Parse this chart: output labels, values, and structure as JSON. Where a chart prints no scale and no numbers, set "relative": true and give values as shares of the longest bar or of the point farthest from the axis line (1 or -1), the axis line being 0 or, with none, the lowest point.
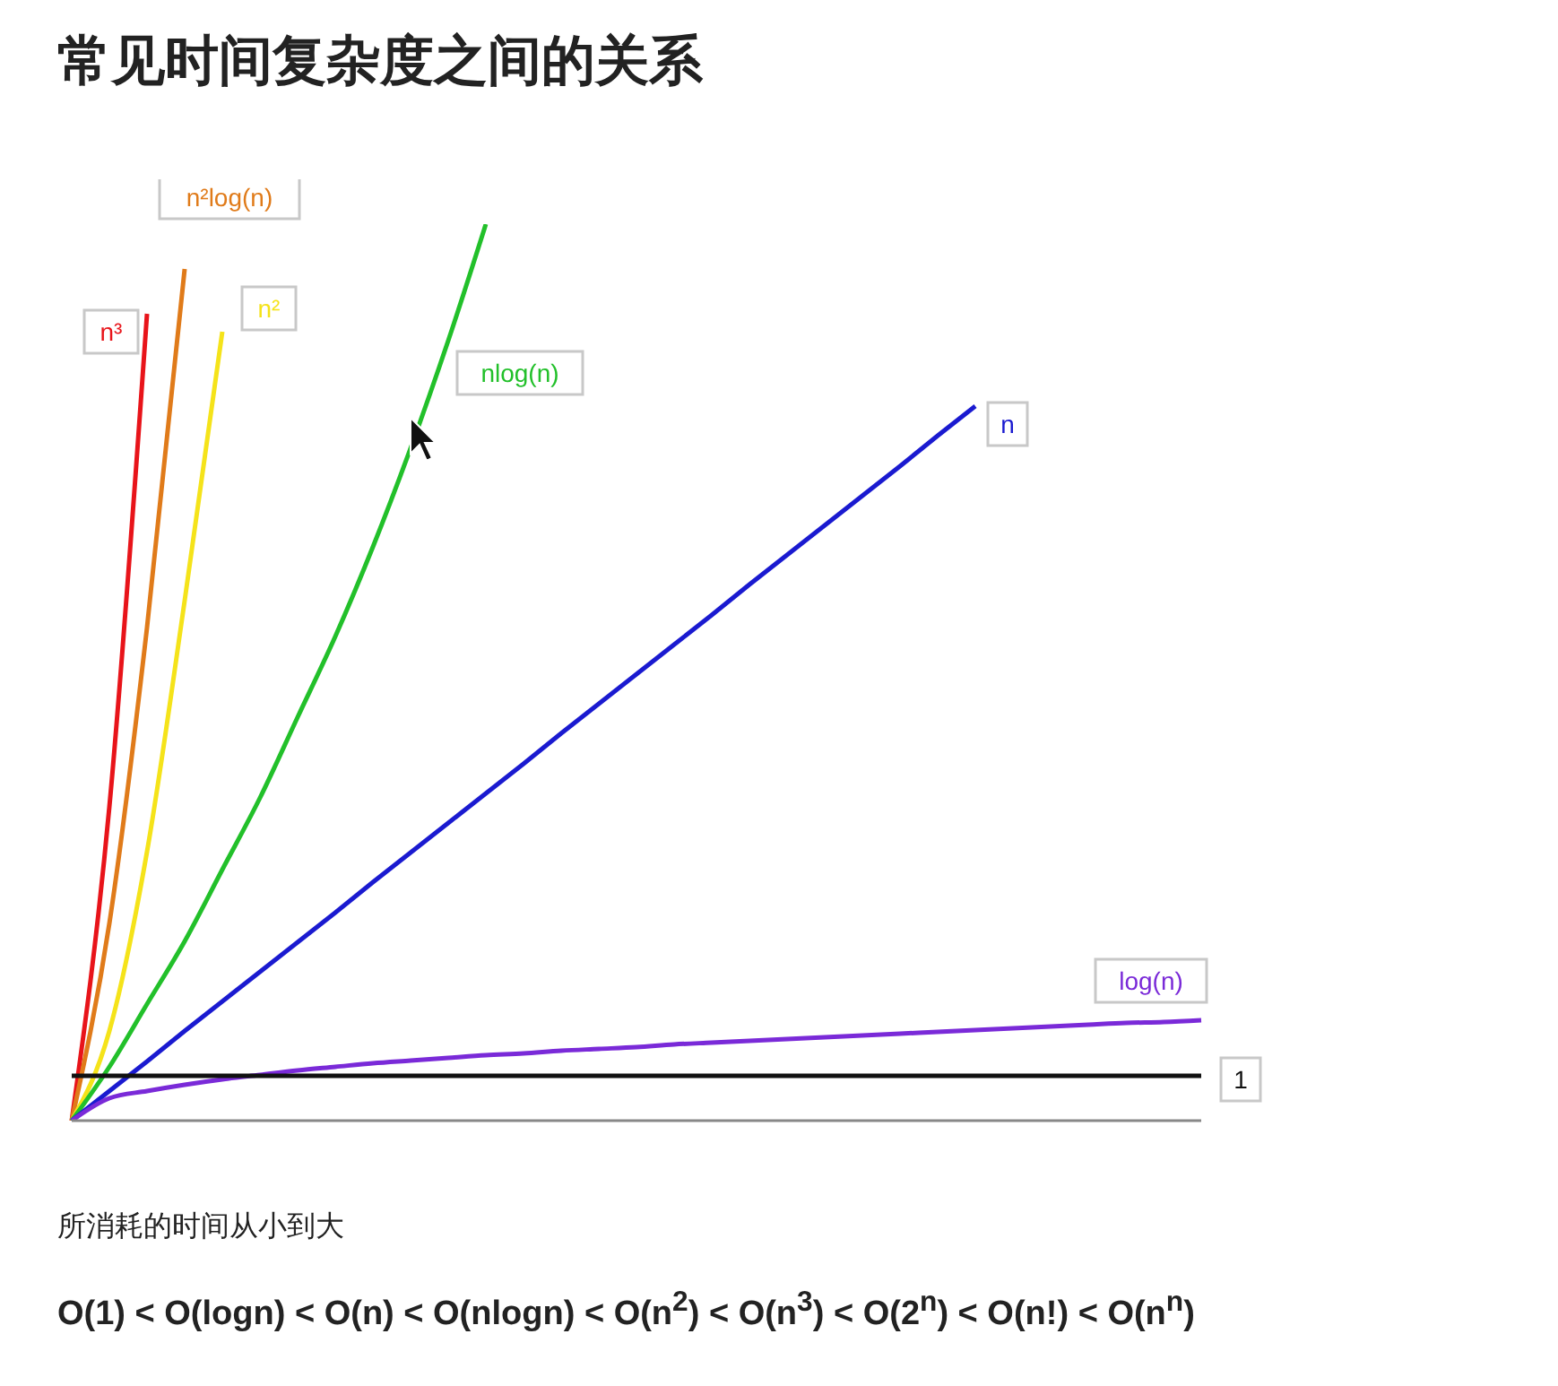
{
  "chart_data": {
    "type": "line",
    "title": "常见时间复杂度之间的关系",
    "relative": true,
    "legend": false,
    "marker": "none",
    "categories": [
      null,
      null,
      null,
      null,
      null,
      null,
      null,
      null,
      null,
      null,
      null,
      null,
      null,
      null,
      null,
      null,
      null,
      null,
      null,
      null,
      null,
      null,
      null,
      null,
      null,
      null,
      null,
      null,
      null,
      null,
      null
    ],
    "series": [
      {
        "name": "n³",
        "color": "#e8141a",
        "values": [
          0,
          0.35,
          0.9,
          null,
          null,
          null,
          null,
          null,
          null,
          null,
          null,
          null,
          null,
          null,
          null,
          null,
          null,
          null,
          null,
          null,
          null,
          null,
          null,
          null,
          null,
          null,
          null,
          null,
          null,
          null,
          null
        ]
      },
      {
        "name": "n²log(n)",
        "color": "#e07b1a",
        "values": [
          0,
          0.22,
          0.55,
          0.95,
          null,
          null,
          null,
          null,
          null,
          null,
          null,
          null,
          null,
          null,
          null,
          null,
          null,
          null,
          null,
          null,
          null,
          null,
          null,
          null,
          null,
          null,
          null,
          null,
          null,
          null,
          null
        ]
      },
      {
        "name": "n²",
        "color": "#f5e31a",
        "values": [
          0,
          0.1,
          0.3,
          0.58,
          0.88,
          null,
          null,
          null,
          null,
          null,
          null,
          null,
          null,
          null,
          null,
          null,
          null,
          null,
          null,
          null,
          null,
          null,
          null,
          null,
          null,
          null,
          null,
          null,
          null,
          null,
          null
        ]
      },
      {
        "name": "nlog(n)",
        "color": "#22c02a",
        "values": [
          0,
          0.06,
          0.13,
          0.2,
          0.28,
          0.36,
          0.45,
          0.54,
          0.64,
          0.75,
          0.87,
          1,
          null,
          null,
          null,
          null,
          null,
          null,
          null,
          null,
          null,
          null,
          null,
          null,
          null,
          null,
          null,
          null,
          null,
          null,
          null
        ]
      },
      {
        "name": "n",
        "color": "#1a1ad0",
        "values": [
          0,
          0.033,
          0.066,
          0.1,
          0.133,
          0.166,
          0.199,
          0.232,
          0.266,
          0.299,
          0.332,
          0.365,
          0.398,
          0.432,
          0.465,
          0.498,
          0.531,
          0.564,
          0.598,
          0.631,
          0.664,
          0.697,
          0.73,
          0.764,
          0.797,
          null,
          null,
          null,
          null,
          null,
          null
        ]
      },
      {
        "name": "log(n)",
        "color": "#7a2ad8",
        "values": [
          0,
          0.025,
          0.033,
          0.04,
          0.046,
          0.051,
          0.056,
          0.06,
          0.064,
          0.067,
          0.07,
          0.073,
          0.075,
          0.078,
          0.08,
          0.082,
          0.085,
          0.087,
          0.089,
          0.091,
          0.093,
          0.095,
          0.097,
          0.099,
          0.101,
          0.103,
          0.105,
          0.107,
          0.109,
          0.11,
          0.112
        ]
      },
      {
        "name": "1",
        "color": "#111111",
        "values": [
          0.05,
          0.05,
          0.05,
          0.05,
          0.05,
          0.05,
          0.05,
          0.05,
          0.05,
          0.05,
          0.05,
          0.05,
          0.05,
          0.05,
          0.05,
          0.05,
          0.05,
          0.05,
          0.05,
          0.05,
          0.05,
          0.05,
          0.05,
          0.05,
          0.05,
          0.05,
          0.05,
          0.05,
          0.05,
          0.05,
          0.05
        ]
      }
    ],
    "annotations": [
      "所消耗的时间从小到大",
      "O(1) < O(logn) < O(n) < O(nlogn) < O(n$^{2}$) < O(n$^{3}$) < O(2$^{n}$) < O(n!) < O(n$^{n}$)"
    ]
  }
}
